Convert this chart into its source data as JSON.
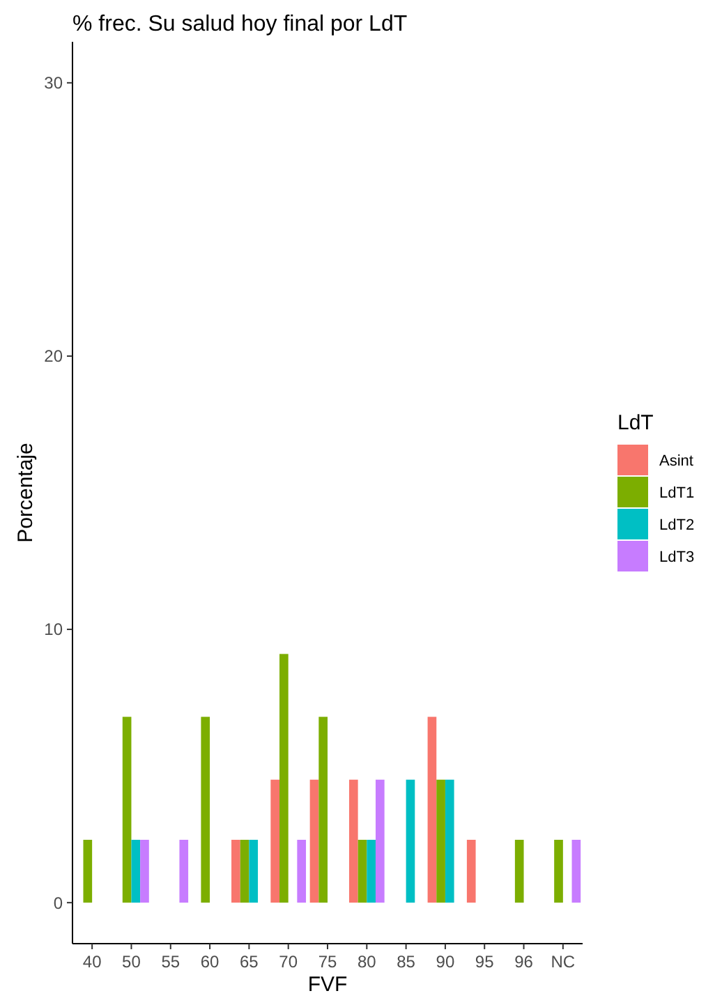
{
  "chart_data": {
    "type": "bar",
    "title": "% frec. Su salud hoy final por LdT",
    "xlabel": "FVF",
    "ylabel": "Porcentaje",
    "legend_title": "LdT",
    "legend": "right",
    "grid": false,
    "categories": [
      "40",
      "50",
      "55",
      "60",
      "65",
      "70",
      "75",
      "80",
      "85",
      "90",
      "95",
      "96",
      "NC"
    ],
    "series": [
      {
        "name": "Asint",
        "color": "#f8766d",
        "values": [
          0,
          0,
          0,
          0,
          2.3,
          4.5,
          4.5,
          4.5,
          0,
          6.8,
          2.3,
          0,
          0
        ]
      },
      {
        "name": "LdT1",
        "color": "#7cae00",
        "values": [
          2.3,
          6.8,
          0,
          6.8,
          2.3,
          9.1,
          6.8,
          2.3,
          0,
          4.5,
          0,
          2.3,
          2.3
        ]
      },
      {
        "name": "LdT2",
        "color": "#00bfc4",
        "values": [
          0,
          2.3,
          0,
          0,
          2.3,
          0,
          0,
          2.3,
          4.5,
          4.5,
          0,
          0,
          0
        ]
      },
      {
        "name": "LdT3",
        "color": "#c77cff",
        "values": [
          0,
          2.3,
          2.3,
          0,
          0,
          2.3,
          0,
          4.5,
          0,
          0,
          0,
          0,
          2.3
        ]
      }
    ],
    "ylim": [
      -1.5,
      31.5
    ],
    "yticks": [
      0,
      10,
      20,
      30
    ]
  }
}
